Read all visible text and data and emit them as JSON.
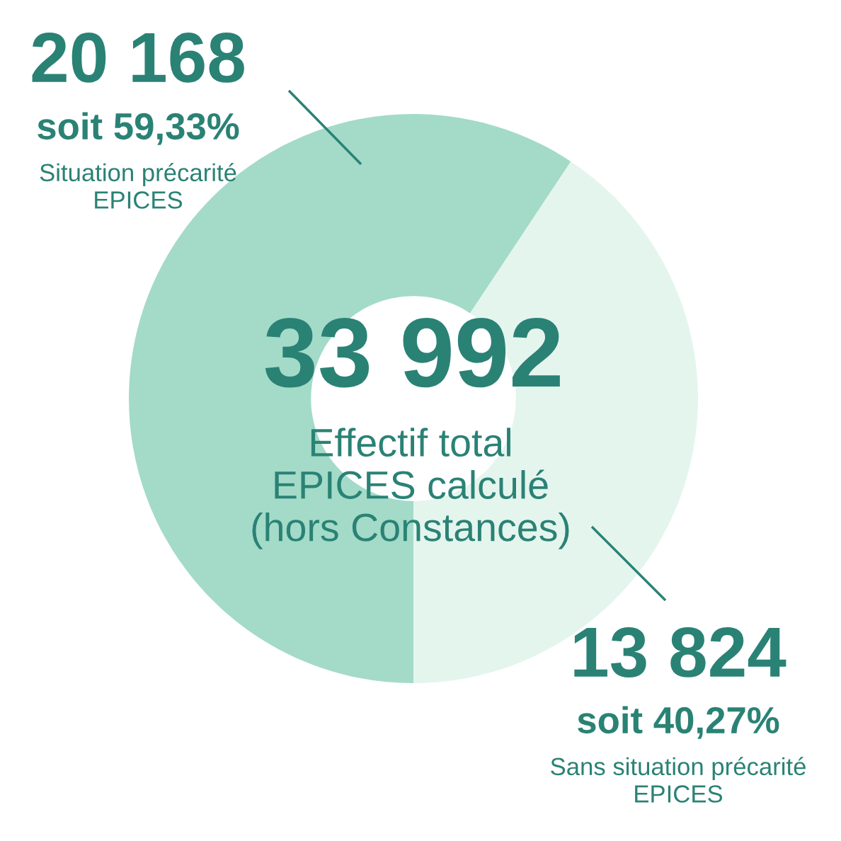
{
  "chart_data": {
    "type": "donut",
    "title": "33 992",
    "subtitle": "Effectif total\nEPICES calculé\n(hors Constances)",
    "categories": [
      "Situation précarité\nEPICES",
      "Sans situation précarité\nEPICES"
    ],
    "values": [
      20168,
      13824
    ],
    "colors": [
      "#a3dbc8",
      "#e4f5ee"
    ],
    "value_labels": [
      "20 168",
      "13 824"
    ],
    "annotations": [
      "soit 59,33%",
      "soit 40,27%"
    ]
  }
}
